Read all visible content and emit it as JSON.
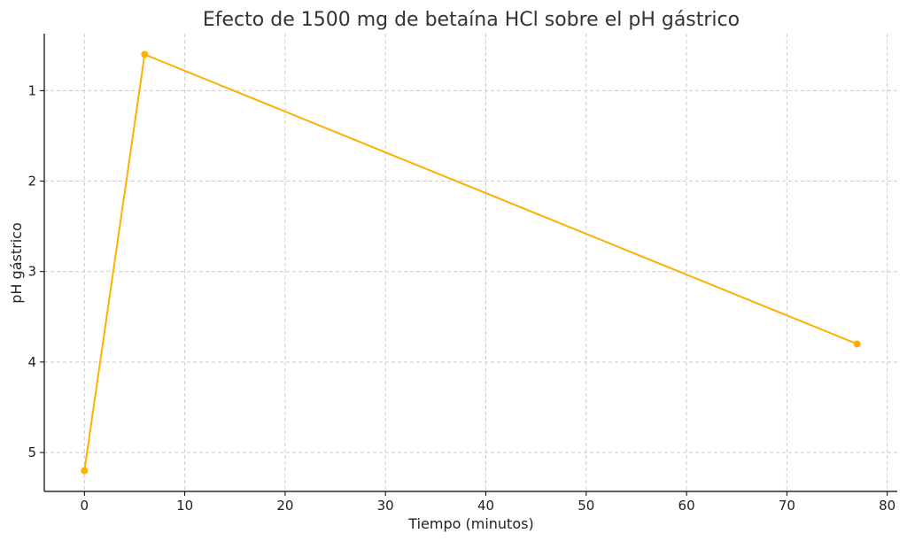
{
  "chart_data": {
    "type": "line",
    "title": "Efecto de 1500 mg de betaína HCl sobre el pH gástrico",
    "xlabel": "Tiempo (minutos)",
    "ylabel": "pH gástrico",
    "xlim": [
      -4,
      81
    ],
    "ylim": [
      5.43,
      0.37
    ],
    "y_inverted": true,
    "grid": true,
    "x_ticks": [
      0,
      10,
      20,
      30,
      40,
      50,
      60,
      70,
      80
    ],
    "y_ticks": [
      1,
      2,
      3,
      4,
      5
    ],
    "series": [
      {
        "color": "#FFB000",
        "x": [
          0,
          6,
          77
        ],
        "y": [
          5.2,
          0.6,
          3.8
        ]
      }
    ]
  }
}
